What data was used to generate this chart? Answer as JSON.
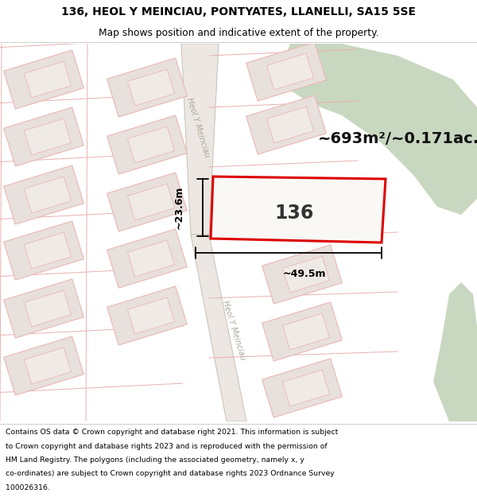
{
  "title_line1": "136, HEOL Y MEINCIAU, PONTYATES, LLANELLI, SA15 5SE",
  "title_line2": "Map shows position and indicative extent of the property.",
  "footer_lines": [
    "Contains OS data © Crown copyright and database right 2021. This information is subject",
    "to Crown copyright and database rights 2023 and is reproduced with the permission of",
    "HM Land Registry. The polygons (including the associated geometry, namely x, y",
    "co-ordinates) are subject to Crown copyright and database rights 2023 Ordnance Survey",
    "100026316."
  ],
  "area_label": "~693m²/~0.171ac.",
  "property_number": "136",
  "width_label": "~49.5m",
  "height_label": "~23.6m",
  "road_label": "Heol Y Meinciau",
  "map_bg": "#f7f4f1",
  "road_fill": "#e8e2dc",
  "road_edge": "#ccc5bb",
  "plot_fill": "#f5f0eb",
  "building_fill": "#e8e0dc",
  "building_edge": "#e8b8b4",
  "inner_fill": "#f0eae6",
  "plot_color": "#dd0000",
  "green_color": "#c8d8c0",
  "white_bg": "#ffffff",
  "road_label_color": "#aaa89a",
  "dim_color": "#000000"
}
